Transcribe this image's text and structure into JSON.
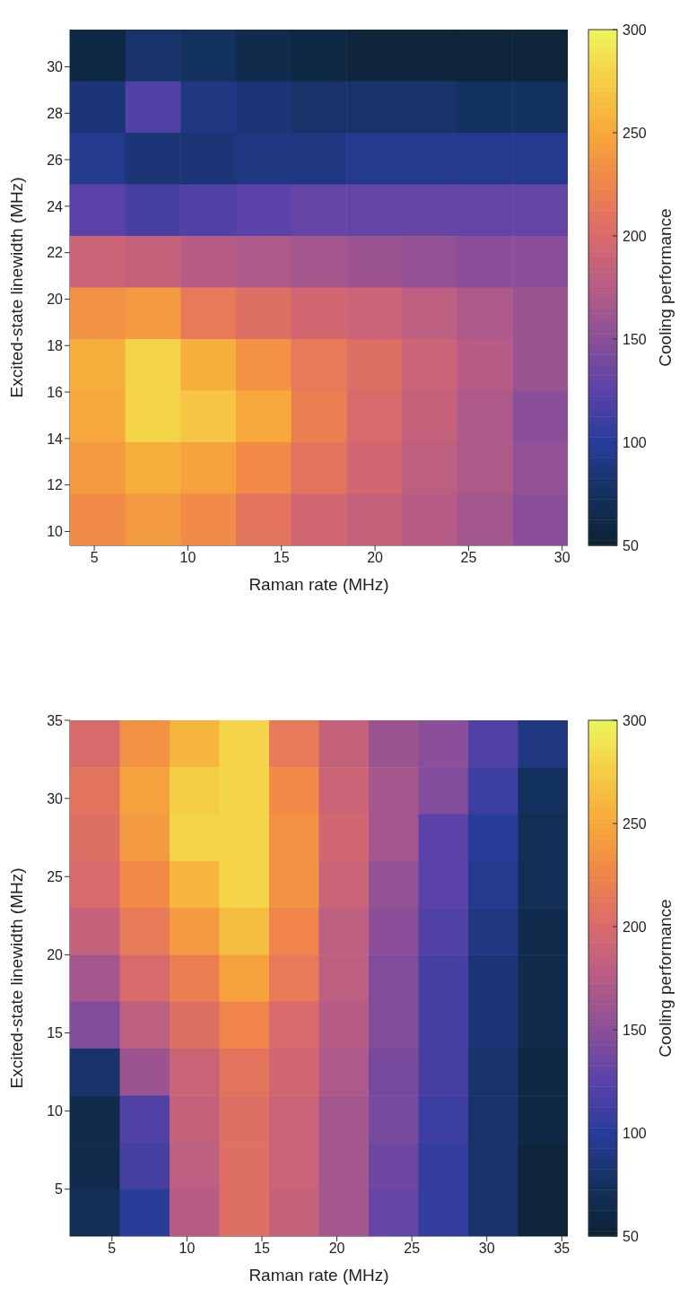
{
  "chart_data": [
    {
      "type": "heatmap",
      "xlabel": "Raman rate (MHz)",
      "ylabel": "Excited-state linewidth (MHz)",
      "clabel": "Cooling performance",
      "xlim": [
        3.7,
        30.3
      ],
      "xticks": [
        5,
        10,
        15,
        20,
        25,
        30
      ],
      "ylim": [
        9.4,
        31.6
      ],
      "yticks": [
        10,
        12,
        14,
        16,
        18,
        20,
        22,
        24,
        26,
        28,
        30
      ],
      "clim": [
        50,
        300
      ],
      "cticks": [
        50,
        100,
        150,
        200,
        250,
        300
      ],
      "cells": [
        [
          60,
          80,
          75,
          65,
          60,
          55,
          55,
          55,
          55
        ],
        [
          85,
          120,
          90,
          85,
          80,
          80,
          80,
          75,
          75
        ],
        [
          95,
          85,
          85,
          90,
          90,
          95,
          95,
          95,
          95
        ],
        [
          125,
          115,
          120,
          125,
          130,
          130,
          130,
          130,
          130
        ],
        [
          190,
          185,
          175,
          170,
          165,
          160,
          155,
          150,
          150
        ],
        [
          235,
          240,
          215,
          205,
          195,
          190,
          180,
          170,
          160
        ],
        [
          255,
          280,
          255,
          235,
          215,
          205,
          190,
          175,
          160
        ],
        [
          250,
          280,
          270,
          250,
          220,
          200,
          185,
          170,
          150
        ],
        [
          240,
          255,
          245,
          230,
          210,
          195,
          180,
          170,
          155
        ],
        [
          230,
          240,
          230,
          210,
          195,
          185,
          175,
          165,
          150
        ]
      ]
    },
    {
      "type": "heatmap",
      "xlabel": "Raman rate (MHz)",
      "ylabel": "Excited-state linewidth (MHz)",
      "clabel": "Cooling performance",
      "xlim": [
        2.2,
        35.4
      ],
      "xticks": [
        5,
        10,
        15,
        20,
        25,
        30,
        35
      ],
      "ylim": [
        2,
        35
      ],
      "yticks": [
        5,
        10,
        15,
        20,
        25,
        30,
        35
      ],
      "clim": [
        50,
        300
      ],
      "cticks": [
        50,
        100,
        150,
        200,
        250,
        300
      ],
      "cells": [
        [
          200,
          235,
          260,
          280,
          215,
          185,
          160,
          150,
          120,
          90
        ],
        [
          210,
          245,
          275,
          280,
          230,
          190,
          165,
          145,
          110,
          75
        ],
        [
          205,
          240,
          280,
          280,
          235,
          195,
          165,
          125,
          100,
          70
        ],
        [
          200,
          230,
          260,
          280,
          235,
          190,
          155,
          125,
          95,
          70
        ],
        [
          185,
          215,
          240,
          265,
          225,
          180,
          150,
          120,
          90,
          65
        ],
        [
          165,
          200,
          220,
          245,
          215,
          180,
          145,
          115,
          85,
          65
        ],
        [
          145,
          180,
          205,
          225,
          200,
          175,
          145,
          115,
          85,
          65
        ],
        [
          80,
          160,
          190,
          210,
          195,
          170,
          140,
          115,
          80,
          60
        ],
        [
          65,
          120,
          185,
          205,
          190,
          165,
          140,
          110,
          80,
          60
        ],
        [
          65,
          115,
          180,
          205,
          190,
          165,
          135,
          105,
          80,
          55
        ],
        [
          70,
          100,
          175,
          205,
          185,
          165,
          130,
          105,
          80,
          55
        ]
      ]
    }
  ]
}
